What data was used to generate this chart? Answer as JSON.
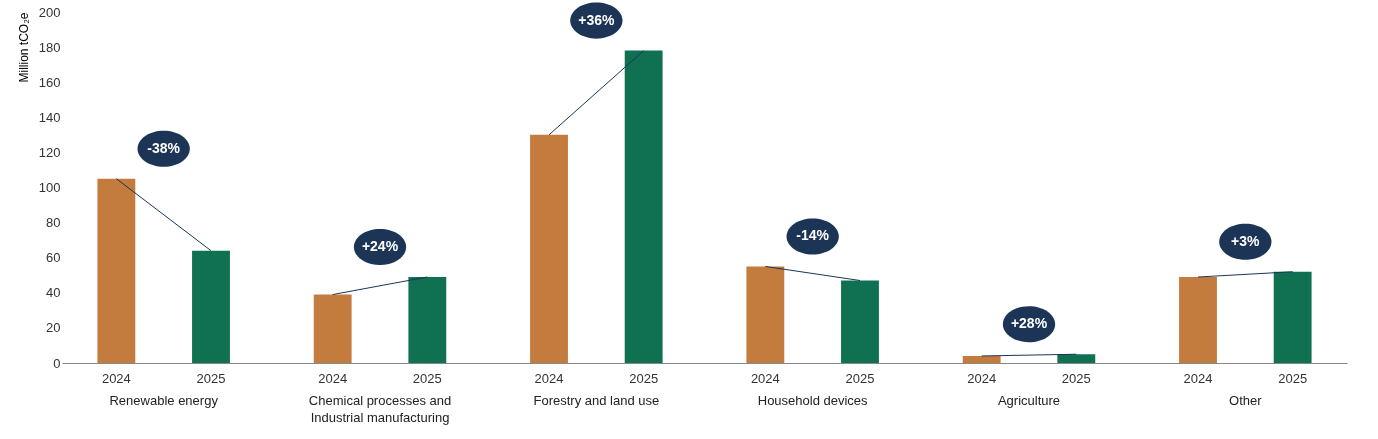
{
  "chart_data": {
    "type": "bar",
    "ylabel": "Million tCO₂e",
    "categories": [
      "Renewable energy",
      "Chemical processes and Industrial manufacturing",
      "Forestry and land use",
      "Household devices",
      "Agriculture",
      "Other"
    ],
    "series": [
      {
        "name": "2024",
        "color": "#c47c3e",
        "values": [
          105,
          39,
          130,
          55,
          4,
          49
        ]
      },
      {
        "name": "2025",
        "color": "#0f7052",
        "values": [
          64,
          49,
          178,
          47,
          5,
          52
        ]
      }
    ],
    "ylim": [
      0,
      200
    ],
    "yticks": [
      0,
      20,
      40,
      60,
      80,
      100,
      120,
      140,
      160,
      180,
      200
    ],
    "grid": false,
    "legend": false,
    "annotations": [
      "-38%",
      "+24%",
      "+36%",
      "-14%",
      "+28%",
      "+3%"
    ]
  }
}
